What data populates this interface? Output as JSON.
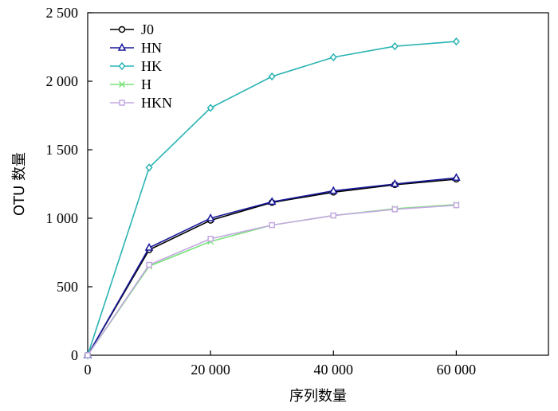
{
  "chart_data": {
    "type": "line",
    "xlabel": "序列数量",
    "ylabel": "OTU 数量",
    "xlim": [
      0,
      75000
    ],
    "ylim": [
      0,
      2500
    ],
    "x_ticks": [
      0,
      20000,
      40000,
      60000
    ],
    "x_tick_labels": [
      "0",
      "20 000",
      "40 000",
      "60 000"
    ],
    "y_ticks": [
      0,
      500,
      1000,
      1500,
      2000,
      2500
    ],
    "y_tick_labels": [
      "0",
      "500",
      "1 000",
      "1 500",
      "2 000",
      "2 500"
    ],
    "grid": false,
    "legend_position": "top-left",
    "x": [
      0,
      10000,
      20000,
      30000,
      40000,
      50000,
      60000
    ],
    "series": [
      {
        "name": "J0",
        "color": "#000000",
        "marker": "circle",
        "values": [
          0,
          770,
          985,
          1115,
          1190,
          1245,
          1285
        ]
      },
      {
        "name": "HN",
        "color": "#1a1a9c",
        "marker": "triangle",
        "values": [
          0,
          785,
          1000,
          1120,
          1200,
          1250,
          1295
        ]
      },
      {
        "name": "HK",
        "color": "#2ab3b3",
        "marker": "diamond",
        "values": [
          0,
          1370,
          1805,
          2035,
          2175,
          2255,
          2290
        ]
      },
      {
        "name": "H",
        "color": "#7be27b",
        "marker": "x",
        "values": [
          0,
          650,
          830,
          950,
          1020,
          1070,
          1100
        ]
      },
      {
        "name": "HKN",
        "color": "#c3a9e0",
        "marker": "square",
        "values": [
          0,
          660,
          850,
          950,
          1020,
          1065,
          1095
        ]
      }
    ]
  }
}
